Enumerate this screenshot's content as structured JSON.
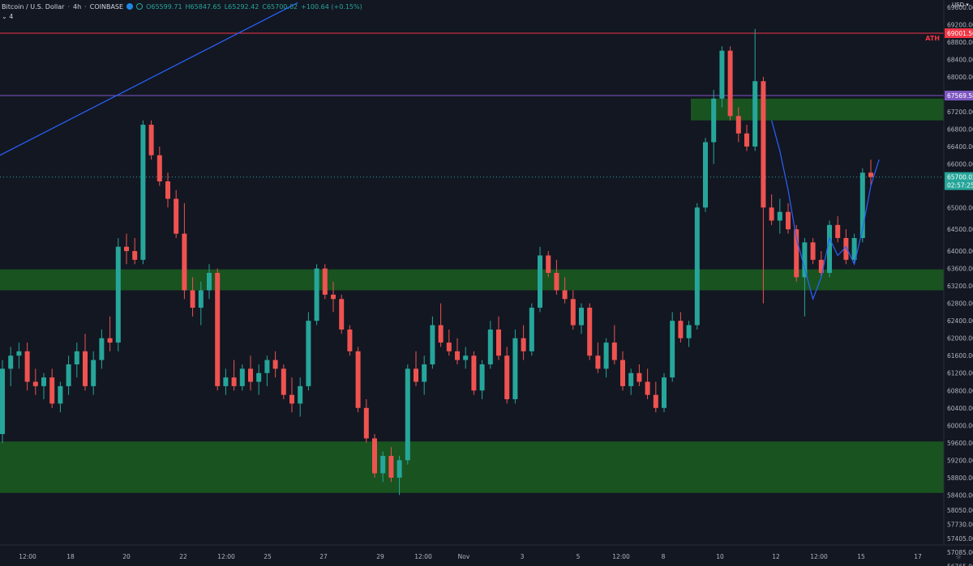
{
  "header": {
    "symbol": "Bitcoin / U.S. Dollar",
    "interval": "4h",
    "exchange": "COINBASE",
    "open": "O65599.71",
    "high": "H65847.65",
    "low": "L65292.42",
    "close": "C65700.02",
    "change": "+100.64 (+0.15%)",
    "indicator_count": "4",
    "currency": "USD"
  },
  "colors": {
    "background": "#131722",
    "up": "#26a69a",
    "down": "#ef5350",
    "zone": "#1b5e20",
    "ath_line": "#f23645",
    "purple_line": "#7e57c2",
    "trend_line": "#2962ff",
    "path": "#2962ff"
  },
  "chart_data": {
    "type": "candlestick",
    "axis": {
      "y_ticks": [
        69600,
        69200,
        68800,
        68400,
        68000,
        67600,
        67200,
        66800,
        66400,
        66000,
        65600,
        65000,
        64500,
        64000,
        63600,
        63200,
        62800,
        62400,
        62000,
        61600,
        61200,
        60800,
        60400,
        60000,
        59600,
        59200,
        58800,
        58400,
        58050,
        57730,
        57405,
        57085,
        56765
      ],
      "y_tick_labels": [
        "69600.00",
        "69200.00",
        "68800.00",
        "68400.00",
        "68000.00",
        "67600.00",
        "67200.00",
        "66800.00",
        "66400.00",
        "66000.00",
        "65600.00",
        "65000.00",
        "64500.00",
        "64000.00",
        "63600.00",
        "63200.00",
        "62800.00",
        "62400.00",
        "62000.00",
        "61600.00",
        "61200.00",
        "60800.00",
        "60400.00",
        "60000.00",
        "59600.00",
        "59200.00",
        "58800.00",
        "58400.00",
        "58050.00",
        "57730.00",
        "57405.00",
        "57085.00",
        "56765.00"
      ],
      "x_labels": [
        "12:00",
        "18",
        "20",
        "22",
        "12:00",
        "25",
        "27",
        "29",
        "12:00",
        "Nov",
        "3",
        "5",
        "12:00",
        "8",
        "10",
        "12",
        "12:00",
        "15",
        "17"
      ]
    },
    "price_labels": {
      "ath": "69001.56",
      "ath_text": "ATH",
      "purple": "67569.58",
      "current": "65700.02",
      "countdown": "02:57:25"
    },
    "zones": [
      {
        "from": 67000,
        "to": 67500
      },
      {
        "from": 63100,
        "to": 63580
      },
      {
        "from": 58450,
        "to": 59630
      }
    ],
    "levels": [
      {
        "name": "ATH",
        "value": 69001.56
      },
      {
        "name": "purple",
        "value": 67569.58
      },
      {
        "name": "current",
        "value": 65700.02
      }
    ],
    "candles": [
      [
        59800,
        61500,
        59600,
        61300
      ],
      [
        61300,
        61800,
        60900,
        61600
      ],
      [
        61600,
        61900,
        61300,
        61700
      ],
      [
        61700,
        61900,
        60800,
        61000
      ],
      [
        61000,
        61300,
        60700,
        60900
      ],
      [
        60900,
        61200,
        60600,
        61100
      ],
      [
        61100,
        61300,
        60400,
        60500
      ],
      [
        60500,
        61000,
        60300,
        60900
      ],
      [
        60900,
        61600,
        60700,
        61400
      ],
      [
        61400,
        61900,
        61100,
        61700
      ],
      [
        61700,
        62100,
        60800,
        60900
      ],
      [
        60900,
        61700,
        60700,
        61500
      ],
      [
        61500,
        62200,
        61300,
        62000
      ],
      [
        62000,
        62500,
        61700,
        61900
      ],
      [
        61900,
        64300,
        61700,
        64100
      ],
      [
        64100,
        64400,
        63700,
        64000
      ],
      [
        64000,
        64300,
        63700,
        63800
      ],
      [
        63800,
        67000,
        63700,
        66900
      ],
      [
        66900,
        67000,
        66100,
        66200
      ],
      [
        66200,
        66400,
        65500,
        65600
      ],
      [
        65600,
        65800,
        65000,
        65200
      ],
      [
        65200,
        65400,
        64300,
        64400
      ],
      [
        64400,
        65100,
        62900,
        63100
      ],
      [
        63100,
        63400,
        62500,
        62700
      ],
      [
        62700,
        63300,
        62300,
        63100
      ],
      [
        63100,
        63700,
        62900,
        63500
      ],
      [
        63500,
        63600,
        60800,
        60900
      ],
      [
        60900,
        61300,
        60700,
        61100
      ],
      [
        61100,
        61500,
        60800,
        60900
      ],
      [
        60900,
        61400,
        60800,
        61300
      ],
      [
        61300,
        61600,
        60800,
        61000
      ],
      [
        61000,
        61400,
        60700,
        61200
      ],
      [
        61200,
        61600,
        60900,
        61500
      ],
      [
        61500,
        61700,
        61100,
        61300
      ],
      [
        61300,
        61400,
        60600,
        60700
      ],
      [
        60700,
        61100,
        60300,
        60500
      ],
      [
        60500,
        61100,
        60200,
        60900
      ],
      [
        60900,
        62600,
        60800,
        62400
      ],
      [
        62400,
        63700,
        62300,
        63600
      ],
      [
        63600,
        63700,
        62900,
        63000
      ],
      [
        63000,
        63300,
        62600,
        62900
      ],
      [
        62900,
        63000,
        62100,
        62200
      ],
      [
        62200,
        62300,
        61600,
        61700
      ],
      [
        61700,
        61800,
        60300,
        60400
      ],
      [
        60400,
        60600,
        59600,
        59700
      ],
      [
        59700,
        59800,
        58800,
        58900
      ],
      [
        58900,
        59400,
        58700,
        59300
      ],
      [
        59300,
        59500,
        58700,
        58800
      ],
      [
        58800,
        59300,
        58400,
        59200
      ],
      [
        59200,
        61400,
        59100,
        61300
      ],
      [
        61300,
        61700,
        60900,
        61000
      ],
      [
        61000,
        61600,
        60700,
        61400
      ],
      [
        61400,
        62500,
        61300,
        62300
      ],
      [
        62300,
        62800,
        61800,
        61900
      ],
      [
        61900,
        62200,
        61600,
        61700
      ],
      [
        61700,
        62000,
        61400,
        61500
      ],
      [
        61500,
        61800,
        61300,
        61600
      ],
      [
        61600,
        61700,
        60700,
        60800
      ],
      [
        60800,
        61500,
        60600,
        61400
      ],
      [
        61400,
        62400,
        61300,
        62200
      ],
      [
        62200,
        62500,
        61500,
        61600
      ],
      [
        61600,
        61800,
        60500,
        60600
      ],
      [
        60600,
        62200,
        60500,
        62000
      ],
      [
        62000,
        62300,
        61500,
        61700
      ],
      [
        61700,
        62800,
        61600,
        62700
      ],
      [
        62700,
        64100,
        62600,
        63900
      ],
      [
        63900,
        64000,
        63400,
        63500
      ],
      [
        63500,
        63800,
        63000,
        63100
      ],
      [
        63100,
        63400,
        62800,
        62900
      ],
      [
        62900,
        63100,
        62200,
        62300
      ],
      [
        62300,
        62800,
        62100,
        62700
      ],
      [
        62700,
        62800,
        61500,
        61600
      ],
      [
        61600,
        61900,
        61200,
        61300
      ],
      [
        61300,
        62000,
        61100,
        61900
      ],
      [
        61900,
        62300,
        61400,
        61500
      ],
      [
        61500,
        61700,
        60800,
        60900
      ],
      [
        60900,
        61300,
        60700,
        61200
      ],
      [
        61200,
        61400,
        60900,
        61000
      ],
      [
        61000,
        61300,
        60600,
        60700
      ],
      [
        60700,
        61000,
        60300,
        60400
      ],
      [
        60400,
        61200,
        60300,
        61100
      ],
      [
        61100,
        62600,
        61000,
        62400
      ],
      [
        62400,
        62600,
        61900,
        62000
      ],
      [
        62000,
        62400,
        61800,
        62300
      ],
      [
        62300,
        65100,
        62200,
        65000
      ],
      [
        65000,
        66600,
        64900,
        66500
      ],
      [
        66500,
        67700,
        66000,
        67500
      ],
      [
        67500,
        68700,
        67300,
        68600
      ],
      [
        68600,
        68700,
        67000,
        67100
      ],
      [
        67100,
        67300,
        66500,
        66700
      ],
      [
        66700,
        66900,
        66300,
        66400
      ],
      [
        66400,
        69100,
        66300,
        67900
      ],
      [
        67900,
        68000,
        62800,
        65000
      ],
      [
        65000,
        65300,
        64600,
        64700
      ],
      [
        64700,
        65200,
        64400,
        64900
      ],
      [
        64900,
        65100,
        64400,
        64500
      ],
      [
        64500,
        64600,
        63300,
        63400
      ],
      [
        63400,
        64300,
        62500,
        64200
      ],
      [
        64200,
        64300,
        63700,
        63800
      ],
      [
        63800,
        64000,
        63400,
        63500
      ],
      [
        63500,
        64700,
        63400,
        64600
      ],
      [
        64600,
        64800,
        64200,
        64300
      ],
      [
        64300,
        64500,
        63700,
        63800
      ],
      [
        63800,
        64400,
        63700,
        64300
      ],
      [
        64300,
        65900,
        64200,
        65800
      ],
      [
        65800,
        66100,
        65500,
        65700
      ]
    ],
    "trend_line": [
      {
        "t": 0,
        "price": 66200
      },
      {
        "t": 36,
        "price": 69700
      }
    ],
    "projection_path": [
      {
        "t": 93,
        "price": 67000
      },
      {
        "t": 94,
        "price": 66300
      },
      {
        "t": 95,
        "price": 65400
      },
      {
        "t": 96,
        "price": 64300
      },
      {
        "t": 97,
        "price": 63600
      },
      {
        "t": 98,
        "price": 62900
      },
      {
        "t": 99,
        "price": 63400
      },
      {
        "t": 100,
        "price": 64300
      },
      {
        "t": 101,
        "price": 63900
      },
      {
        "t": 102,
        "price": 64100
      },
      {
        "t": 103,
        "price": 63700
      },
      {
        "t": 104,
        "price": 64500
      },
      {
        "t": 105,
        "price": 65500
      },
      {
        "t": 106,
        "price": 66100
      }
    ]
  }
}
